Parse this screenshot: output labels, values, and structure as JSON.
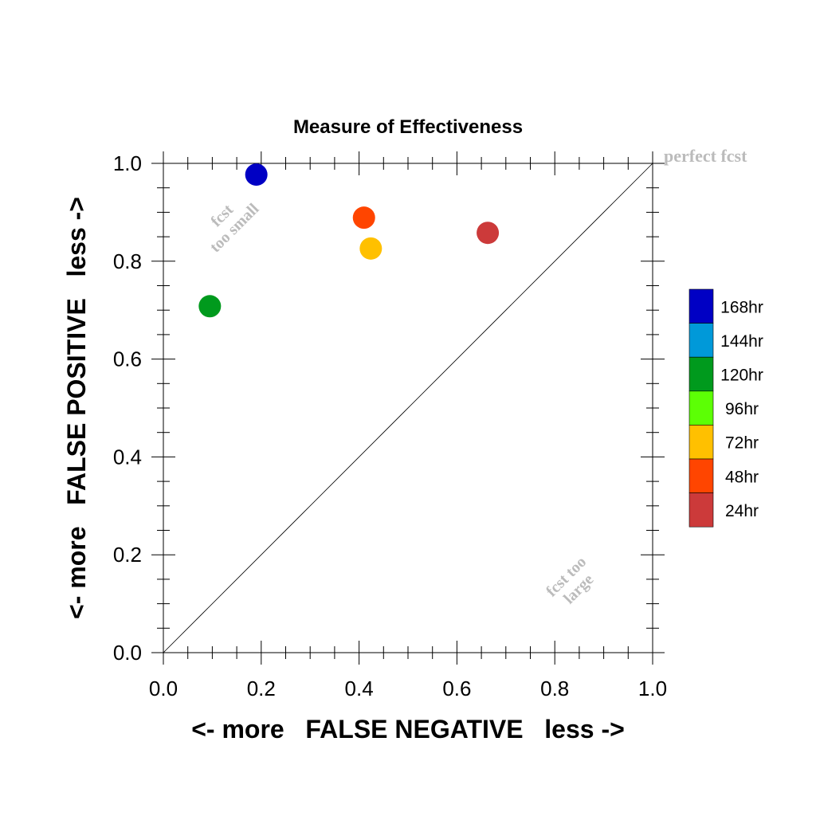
{
  "chart_data": {
    "type": "scatter",
    "title": "Measure of Effectiveness",
    "xlabel": "<- more   FALSE NEGATIVE   less ->",
    "ylabel": "<- more   FALSE POSITIVE   less ->",
    "xlim": [
      0,
      1
    ],
    "ylim": [
      0,
      1
    ],
    "xticks": [
      "0.0",
      "0.2",
      "0.4",
      "0.6",
      "0.8",
      "1.0"
    ],
    "yticks": [
      "0.0",
      "0.2",
      "0.4",
      "0.6",
      "0.8",
      "1.0"
    ],
    "grid": false,
    "reference_line": "diagonal y = x",
    "annotations": {
      "perfect": "perfect fcst",
      "too_small_line1": "fcst",
      "too_small_line2": "too small",
      "too_large_line1": "fcst too",
      "too_large_line2": "large"
    },
    "legend_position": "right",
    "legend": [
      {
        "label": "168hr",
        "color": "#0000c4"
      },
      {
        "label": "144hr",
        "color": "#0099d9"
      },
      {
        "label": "120hr",
        "color": "#009a1d"
      },
      {
        "label": "96hr",
        "color": "#5cff05"
      },
      {
        "label": "72hr",
        "color": "#ffc000"
      },
      {
        "label": "48hr",
        "color": "#ff4500"
      },
      {
        "label": "24hr",
        "color": "#cc3a3a"
      }
    ],
    "points": [
      {
        "series": "168hr",
        "x": 0.19,
        "y": 0.977,
        "color": "#0000c4"
      },
      {
        "series": "120hr",
        "x": 0.095,
        "y": 0.708,
        "color": "#009a1d"
      },
      {
        "series": "72hr",
        "x": 0.424,
        "y": 0.826,
        "color": "#ffc000"
      },
      {
        "series": "48hr",
        "x": 0.41,
        "y": 0.889,
        "color": "#ff4500"
      },
      {
        "series": "24hr",
        "x": 0.663,
        "y": 0.858,
        "color": "#cc3a3a"
      }
    ]
  }
}
